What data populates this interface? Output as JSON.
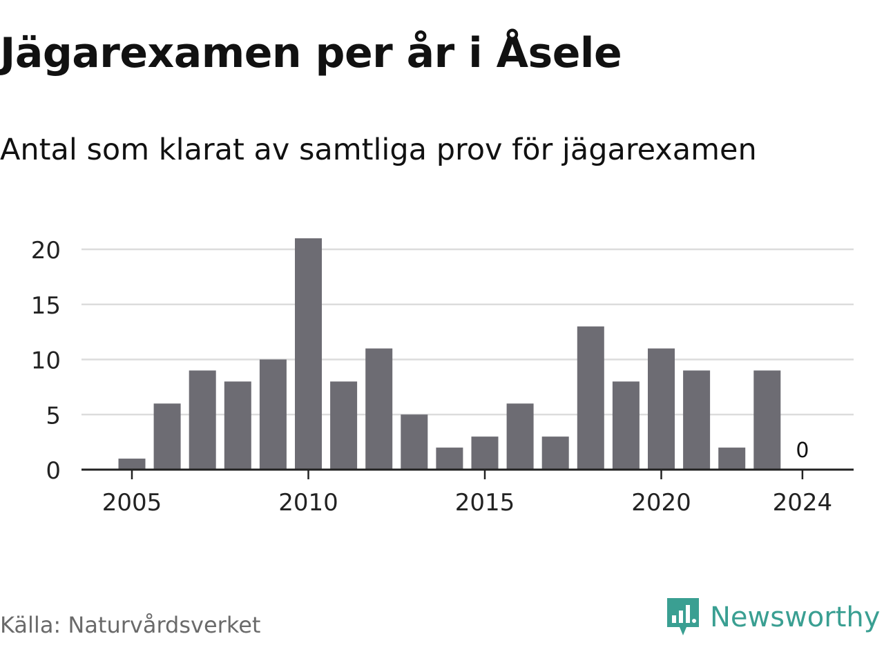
{
  "title": "Jägarexamen per år i Åsele",
  "subtitle": "Antal som klarat av samtliga prov för jägarexamen",
  "source": "Källa: Naturvårdsverket",
  "brand": {
    "name": "Newsworthy",
    "icon": "newsworthy-logo-icon",
    "color": "#3a9f92"
  },
  "chart_data": {
    "type": "bar",
    "title": "Jägarexamen per år i Åsele",
    "subtitle": "Antal som klarat av samtliga prov för jägarexamen",
    "xlabel": "",
    "ylabel": "",
    "x": [
      2005,
      2006,
      2007,
      2008,
      2009,
      2010,
      2011,
      2012,
      2013,
      2014,
      2015,
      2016,
      2017,
      2018,
      2019,
      2020,
      2021,
      2022,
      2023,
      2024
    ],
    "values": [
      1,
      6,
      9,
      8,
      10,
      21,
      8,
      11,
      5,
      2,
      3,
      6,
      3,
      13,
      8,
      11,
      9,
      2,
      9,
      0
    ],
    "ylim": [
      0,
      21
    ],
    "yticks": [
      0,
      5,
      10,
      15,
      20
    ],
    "xticks": [
      2005,
      2010,
      2015,
      2020,
      2024
    ],
    "data_labels": [
      {
        "x": 2024,
        "text": "0"
      }
    ],
    "bar_color": "#6d6c73",
    "grid": true,
    "legend": "none"
  }
}
